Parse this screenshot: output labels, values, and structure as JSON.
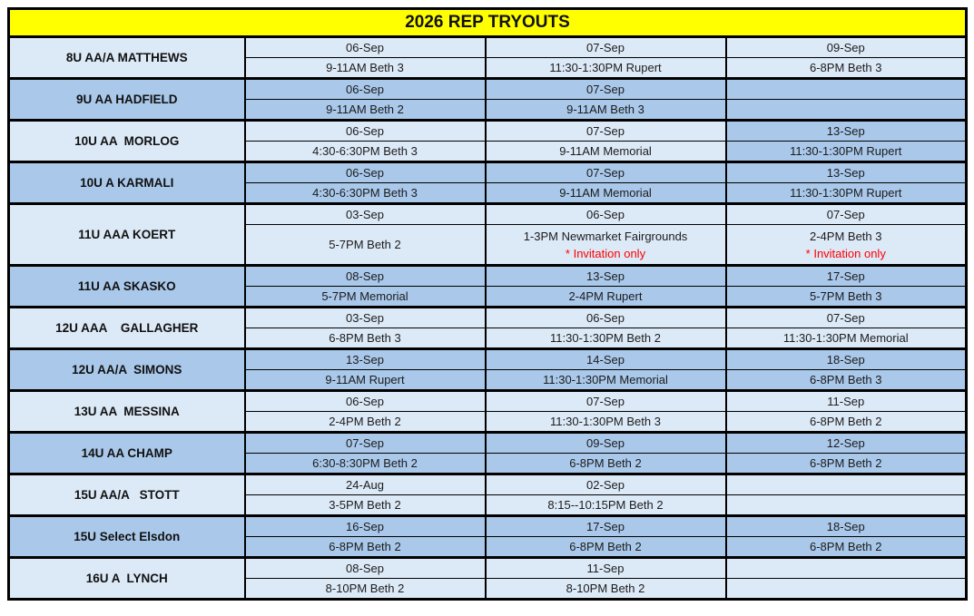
{
  "title": "2026 REP TRYOUTS",
  "colors": {
    "title_bg": "#FFFF00",
    "row_light": "#DCE9F7",
    "row_dark": "#A9C8EA",
    "note_red": "#FF0000",
    "border": "#000000"
  },
  "teams": [
    {
      "name": "8U AA/A MATTHEWS",
      "shade": "light",
      "sessions": [
        {
          "date": "06-Sep",
          "detail": "9-11AM Beth 3"
        },
        {
          "date": "07-Sep",
          "detail": "11:30-1:30PM Rupert"
        },
        {
          "date": "09-Sep",
          "detail": "6-8PM Beth 3"
        }
      ]
    },
    {
      "name": "9U AA HADFIELD",
      "shade": "dark",
      "sessions": [
        {
          "date": "06-Sep",
          "detail": "9-11AM Beth 2"
        },
        {
          "date": "07-Sep",
          "detail": "9-11AM Beth 3"
        },
        {
          "date": "",
          "detail": ""
        }
      ]
    },
    {
      "name": "10U AA  MORLOG",
      "shade": "light",
      "sessions": [
        {
          "date": "06-Sep",
          "detail": "4:30-6:30PM Beth 3"
        },
        {
          "date": "07-Sep",
          "detail": "9-11AM Memorial"
        },
        {
          "date": "13-Sep",
          "detail": "11:30-1:30PM Rupert",
          "shade": "dark"
        }
      ]
    },
    {
      "name": "10U A KARMALI",
      "shade": "dark",
      "sessions": [
        {
          "date": "06-Sep",
          "detail": "4:30-6:30PM Beth 3"
        },
        {
          "date": "07-Sep",
          "detail": "9-11AM Memorial"
        },
        {
          "date": "13-Sep",
          "detail": "11:30-1:30PM Rupert"
        }
      ]
    },
    {
      "name": "11U AAA KOERT",
      "shade": "light",
      "tall": true,
      "sessions": [
        {
          "date": "03-Sep",
          "detail": "5-7PM Beth 2"
        },
        {
          "date": "06-Sep",
          "detail": "1-3PM Newmarket Fairgrounds",
          "note": "* Invitation only"
        },
        {
          "date": "07-Sep",
          "detail": "2-4PM Beth 3",
          "note": "* Invitation only"
        }
      ]
    },
    {
      "name": "11U AA SKASKO",
      "shade": "dark",
      "sessions": [
        {
          "date": "08-Sep",
          "detail": "5-7PM Memorial"
        },
        {
          "date": "13-Sep",
          "detail": "2-4PM Rupert"
        },
        {
          "date": "17-Sep",
          "detail": "5-7PM Beth 3"
        }
      ]
    },
    {
      "name": "12U AAA    GALLAGHER",
      "shade": "light",
      "sessions": [
        {
          "date": "03-Sep",
          "detail": "6-8PM Beth 3"
        },
        {
          "date": "06-Sep",
          "detail": "11:30-1:30PM Beth 2"
        },
        {
          "date": "07-Sep",
          "detail": "11:30-1:30PM Memorial"
        }
      ]
    },
    {
      "name": "12U AA/A  SIMONS",
      "shade": "dark",
      "sessions": [
        {
          "date": "13-Sep",
          "detail": "9-11AM Rupert"
        },
        {
          "date": "14-Sep",
          "detail": "11:30-1:30PM Memorial"
        },
        {
          "date": "18-Sep",
          "detail": "6-8PM Beth 3"
        }
      ]
    },
    {
      "name": "13U AA  MESSINA",
      "shade": "light",
      "sessions": [
        {
          "date": "06-Sep",
          "detail": "2-4PM Beth 2"
        },
        {
          "date": "07-Sep",
          "detail": "11:30-1:30PM Beth 3"
        },
        {
          "date": "11-Sep",
          "detail": "6-8PM Beth 2"
        }
      ]
    },
    {
      "name": "14U AA CHAMP",
      "shade": "dark",
      "sessions": [
        {
          "date": "07-Sep",
          "detail": "6:30-8:30PM Beth 2"
        },
        {
          "date": "09-Sep",
          "detail": "6-8PM Beth 2"
        },
        {
          "date": "12-Sep",
          "detail": "6-8PM Beth 2"
        }
      ]
    },
    {
      "name": "15U AA/A   STOTT",
      "shade": "light",
      "sessions": [
        {
          "date": "24-Aug",
          "detail": "3-5PM Beth 2"
        },
        {
          "date": "02-Sep",
          "detail": "8:15--10:15PM Beth 2"
        },
        {
          "date": "",
          "detail": ""
        }
      ]
    },
    {
      "name": "15U Select Elsdon",
      "shade": "dark",
      "sessions": [
        {
          "date": "16-Sep",
          "detail": "6-8PM Beth 2"
        },
        {
          "date": "17-Sep",
          "detail": "6-8PM Beth 2"
        },
        {
          "date": "18-Sep",
          "detail": "6-8PM Beth 2"
        }
      ]
    },
    {
      "name": "16U A  LYNCH",
      "shade": "light",
      "sessions": [
        {
          "date": "08-Sep",
          "detail": "8-10PM Beth 2"
        },
        {
          "date": "11-Sep",
          "detail": "8-10PM Beth 2"
        },
        {
          "date": "",
          "detail": ""
        }
      ]
    }
  ]
}
